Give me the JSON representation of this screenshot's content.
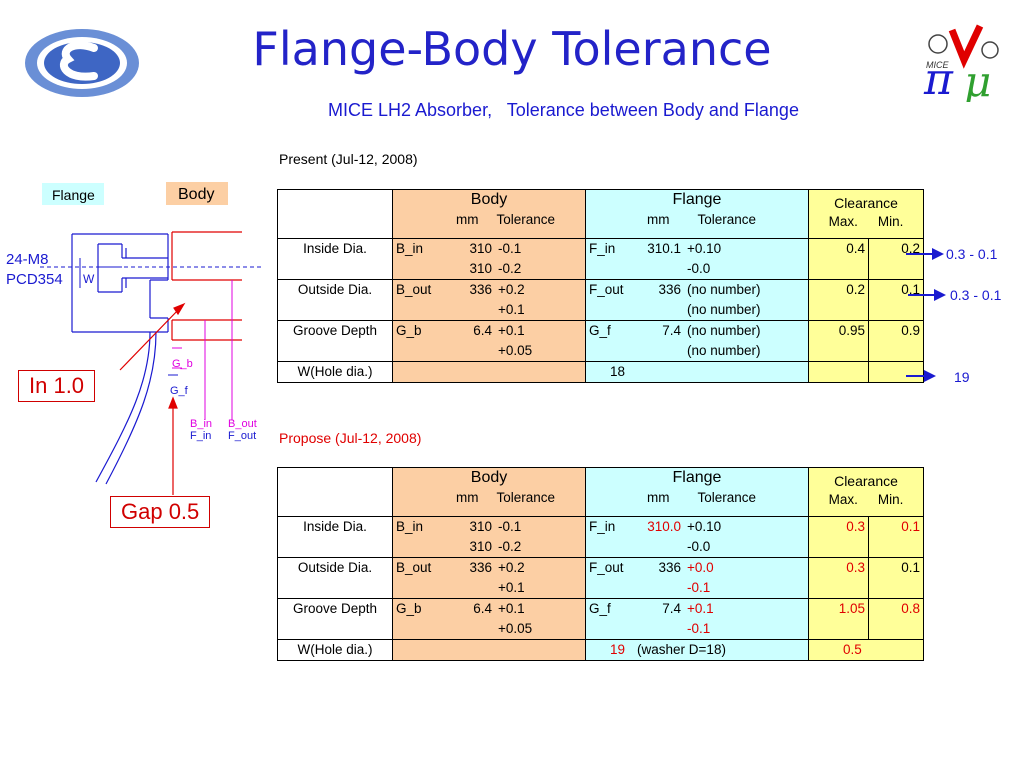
{
  "slide": {
    "title": "Flange-Body Tolerance",
    "subtitle": "MICE LH2 Absorber,   Tolerance between Body and Flange"
  },
  "logos": {
    "left": "ellipse-e-logo",
    "right_text": "MICE"
  },
  "drawing": {
    "flange_label": "Flange",
    "body_label": "Body",
    "bolt_label": "24-M8",
    "pcd_label": "PCD354",
    "w_label": "W",
    "g_b": "G_b",
    "g_f": "G_f",
    "b_in": "B_in",
    "f_in": "F_in",
    "b_out": "B_out",
    "f_out": "F_out",
    "colors": {
      "blue": "#1a1ad0",
      "magenta": "#e000e0",
      "flange_bg": "#ccffff",
      "body_bg": "#fccfa4"
    }
  },
  "callouts": {
    "in_label": "In 1.0",
    "gap_label": "Gap 0.5"
  },
  "present": {
    "label": "Present (Jul-12, 2008)",
    "header": {
      "body": "Body",
      "flange": "Flange",
      "mm": "mm",
      "tolerance": "Tolerance",
      "clearance": "Clearance",
      "max": "Max.",
      "min": "Min."
    },
    "rows": [
      {
        "name": "Inside Dia.",
        "b_lbl": "B_in",
        "b_num1": "310",
        "b_tol1": "-0.1",
        "b_num2": "310",
        "b_tol2": "-0.2",
        "f_lbl": "F_in",
        "f_num": "310.1",
        "f_tol1": "+0.10",
        "f_tol2": "-0.0",
        "max": "0.4",
        "min": "0.2",
        "arrow": "0.3 - 0.1"
      },
      {
        "name": "Outside Dia.",
        "b_lbl": "B_out",
        "b_num1": "336",
        "b_tol1": "+0.2",
        "b_num2": "",
        "b_tol2": "+0.1",
        "f_lbl": "F_out",
        "f_num": "336",
        "f_tol1": "(no number)",
        "f_tol2": "(no number)",
        "max": "0.2",
        "min": "0.1",
        "arrow": "0.3 - 0.1"
      },
      {
        "name": "Groove Depth",
        "b_lbl": "G_b",
        "b_num1": "6.4",
        "b_tol1": "+0.1",
        "b_num2": "",
        "b_tol2": "+0.05",
        "f_lbl": "G_f",
        "f_num": "7.4",
        "f_tol1": "(no number)",
        "f_tol2": "(no number)",
        "max": "0.95",
        "min": "0.9",
        "arrow": ""
      }
    ],
    "last": {
      "name": "W(Hole dia.)",
      "flange_val": "18",
      "arrow": "19"
    }
  },
  "propose": {
    "label": "Propose (Jul-12, 2008)",
    "header": {
      "body": "Body",
      "flange": "Flange",
      "mm": "mm",
      "tolerance": "Tolerance",
      "clearance": "Clearance",
      "max": "Max.",
      "min": "Min."
    },
    "rows": [
      {
        "name": "Inside Dia.",
        "b_lbl": "B_in",
        "b_num1": "310",
        "b_tol1": "-0.1",
        "b_num2": "310",
        "b_tol2": "-0.2",
        "f_lbl": "F_in",
        "f_num": "310.0",
        "f_tol1": "+0.10",
        "f_tol2": "-0.0",
        "max": "0.3",
        "min": "0.1"
      },
      {
        "name": "Outside Dia.",
        "b_lbl": "B_out",
        "b_num1": "336",
        "b_tol1": "+0.2",
        "b_num2": "",
        "b_tol2": "+0.1",
        "f_lbl": "F_out",
        "f_num": "336",
        "f_tol1": "+0.0",
        "f_tol2": "-0.1",
        "max": "0.3",
        "min": "0.1"
      },
      {
        "name": "Groove Depth",
        "b_lbl": "G_b",
        "b_num1": "6.4",
        "b_tol1": "+0.1",
        "b_num2": "",
        "b_tol2": "+0.05",
        "f_lbl": "G_f",
        "f_num": "7.4",
        "f_tol1": "+0.1",
        "f_tol2": "-0.1",
        "max": "1.05",
        "min": "0.8"
      }
    ],
    "last": {
      "name": "W(Hole dia.)",
      "flange_val": "19",
      "flange_note": "(washer D=18)",
      "max": "0.5"
    }
  }
}
